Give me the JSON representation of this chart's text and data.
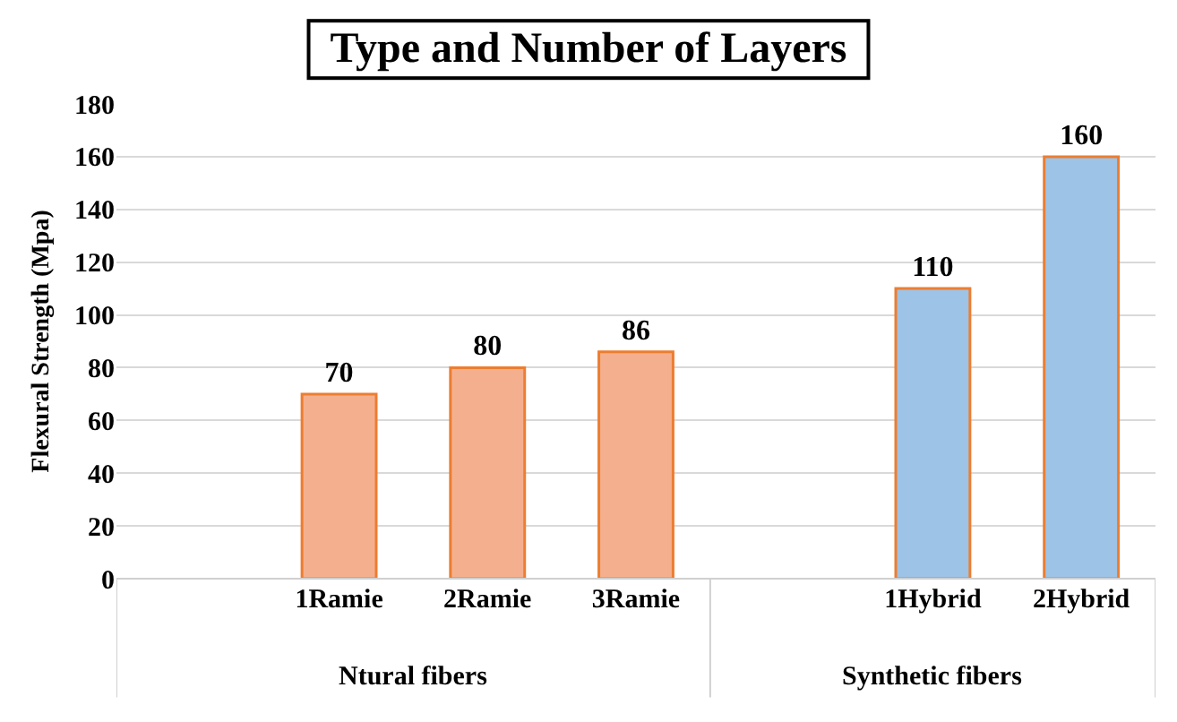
{
  "chart_data": {
    "type": "bar",
    "title": "Type and Number of Layers",
    "ylabel": "Flexural Strength (Mpa)",
    "categories": [
      null,
      "1Ramie",
      "2Ramie",
      "3Ramie",
      null,
      "1Hybrid",
      "2Hybrid"
    ],
    "values": [
      null,
      70,
      80,
      86,
      null,
      110,
      160
    ],
    "colors": [
      "#f4b08e",
      "#f4b08e",
      "#f4b08e",
      "#f4b08e",
      "#9dc3e6",
      "#9dc3e6",
      "#9dc3e6"
    ],
    "ylim": [
      0,
      180
    ],
    "yticks": [
      0,
      20,
      40,
      60,
      80,
      100,
      120,
      140,
      160,
      180
    ],
    "annotations": [
      "Ntural fibers",
      "Synthetic fibers"
    ],
    "data_labels": true,
    "grid": "y"
  }
}
